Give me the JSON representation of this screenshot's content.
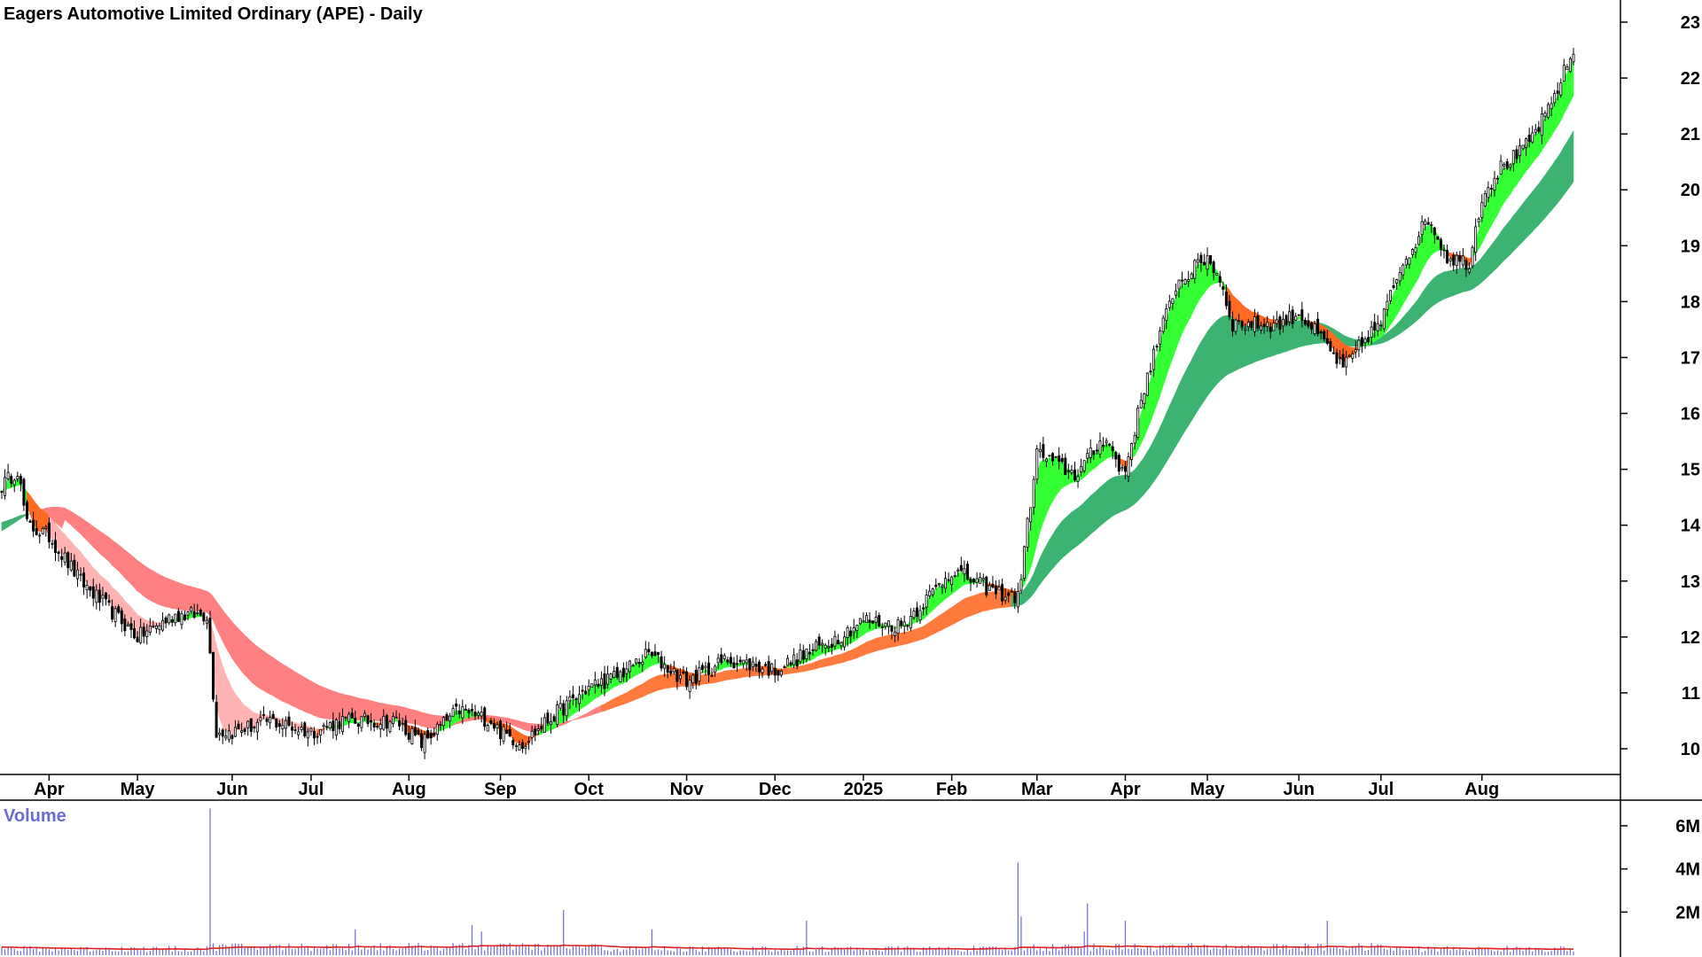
{
  "chart_data": {
    "type": "candlestick",
    "title": "Eagers Automotive Limited Ordinary (APE) - Daily",
    "price_axis": {
      "ticks": [
        10,
        11,
        12,
        13,
        14,
        15,
        16,
        17,
        18,
        19,
        20,
        21,
        22,
        23
      ],
      "range": [
        9.5,
        23.3
      ]
    },
    "month_labels": [
      "Apr",
      "May",
      "Jun",
      "Jul",
      "Aug",
      "Sep",
      "Oct",
      "Nov",
      "Dec",
      "2025",
      "Feb",
      "Mar",
      "Apr",
      "May",
      "Jun",
      "Jul",
      "Aug"
    ],
    "month_bar_index": [
      15,
      43,
      73,
      98,
      129,
      158,
      186,
      217,
      245,
      273,
      301,
      328,
      356,
      382,
      411,
      437,
      469
    ],
    "bar_count": 499,
    "price_anchors": [
      [
        0,
        14.7
      ],
      [
        5,
        15.0
      ],
      [
        8,
        14.0
      ],
      [
        15,
        13.8
      ],
      [
        25,
        13.0
      ],
      [
        43,
        12.0
      ],
      [
        55,
        12.4
      ],
      [
        65,
        12.4
      ],
      [
        68,
        10.3
      ],
      [
        73,
        10.3
      ],
      [
        85,
        10.5
      ],
      [
        98,
        10.3
      ],
      [
        108,
        10.5
      ],
      [
        125,
        10.5
      ],
      [
        129,
        10.3
      ],
      [
        133,
        10.1
      ],
      [
        145,
        10.7
      ],
      [
        155,
        10.5
      ],
      [
        158,
        10.3
      ],
      [
        165,
        10.1
      ],
      [
        175,
        10.6
      ],
      [
        186,
        11.1
      ],
      [
        195,
        11.3
      ],
      [
        205,
        11.7
      ],
      [
        217,
        11.2
      ],
      [
        230,
        11.6
      ],
      [
        245,
        11.4
      ],
      [
        255,
        11.7
      ],
      [
        265,
        12.0
      ],
      [
        273,
        12.3
      ],
      [
        285,
        12.2
      ],
      [
        295,
        12.8
      ],
      [
        301,
        13.2
      ],
      [
        315,
        12.8
      ],
      [
        322,
        12.7
      ],
      [
        328,
        15.3
      ],
      [
        340,
        14.9
      ],
      [
        350,
        15.6
      ],
      [
        354,
        15.0
      ],
      [
        356,
        15.0
      ],
      [
        363,
        16.7
      ],
      [
        372,
        18.3
      ],
      [
        382,
        18.8
      ],
      [
        386,
        18.4
      ],
      [
        390,
        17.6
      ],
      [
        397,
        17.6
      ],
      [
        405,
        17.6
      ],
      [
        411,
        17.8
      ],
      [
        420,
        17.2
      ],
      [
        425,
        16.8
      ],
      [
        433,
        17.4
      ],
      [
        437,
        17.6
      ],
      [
        443,
        18.6
      ],
      [
        452,
        19.5
      ],
      [
        458,
        18.8
      ],
      [
        465,
        18.7
      ],
      [
        469,
        19.9
      ],
      [
        475,
        20.4
      ],
      [
        482,
        20.7
      ],
      [
        490,
        21.4
      ],
      [
        495,
        22.1
      ],
      [
        499,
        22.6
      ]
    ],
    "short_term_mma": {
      "colors": {
        "bullish": "#33ff33",
        "bearish": "#ff6a22",
        "neutral_fade": "#ffb3b3"
      }
    },
    "long_term_mma": {
      "colors": {
        "bullish": "#3cb371",
        "bearish": "#ff8080",
        "transition": "#ff7a3d"
      }
    },
    "volume": {
      "label": "Volume",
      "ticks": [
        "2M",
        "4M",
        "6M"
      ],
      "tick_values": [
        2,
        4,
        6
      ],
      "range": [
        0,
        6.9
      ],
      "unit": "M",
      "baseline": 0.32,
      "bar_color": "#6b6bd6",
      "average_line_color": "#e02020",
      "spikes": [
        [
          66,
          6.8
        ],
        [
          112,
          1.2
        ],
        [
          149,
          1.4
        ],
        [
          152,
          1.1
        ],
        [
          178,
          2.1
        ],
        [
          206,
          1.2
        ],
        [
          255,
          1.6
        ],
        [
          322,
          4.3
        ],
        [
          323,
          1.8
        ],
        [
          343,
          1.1
        ],
        [
          344,
          2.4
        ],
        [
          356,
          1.6
        ],
        [
          420,
          1.6
        ]
      ]
    }
  }
}
